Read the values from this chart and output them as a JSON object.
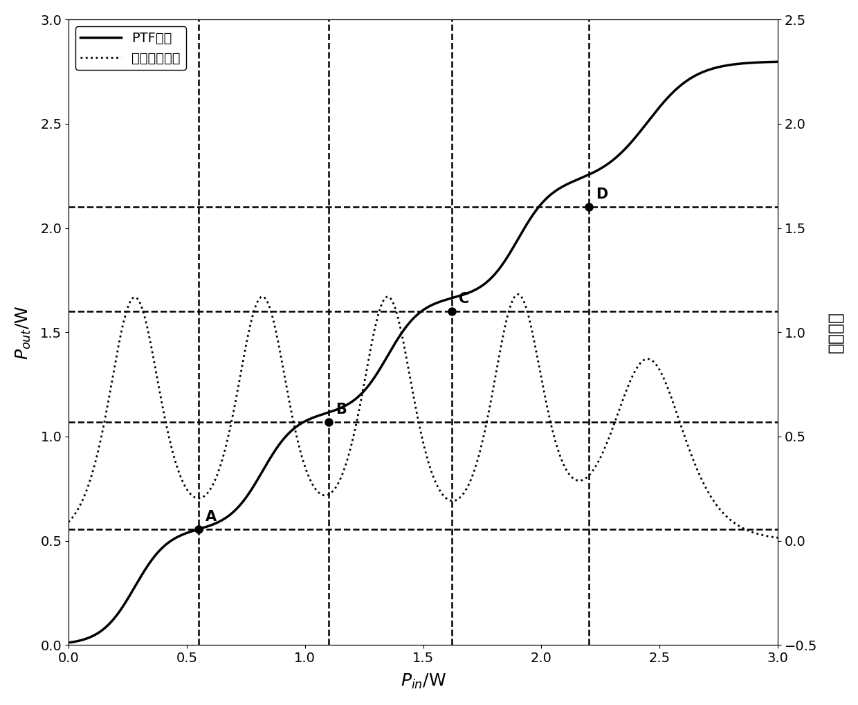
{
  "xlabel": "$P_{in}$/W",
  "ylabel_left": "$P_{out}$/W",
  "ylabel_right": "微分增益",
  "legend_ptf": "PTF曲线",
  "legend_diff": "微分增益曲线",
  "xlim": [
    0,
    3
  ],
  "ylim_left": [
    0,
    3
  ],
  "ylim_right": [
    -0.5,
    2.5
  ],
  "points": {
    "A": [
      0.55,
      0.555
    ],
    "B": [
      1.1,
      1.07
    ],
    "C": [
      1.62,
      1.6
    ],
    "D": [
      2.2,
      2.1
    ]
  },
  "hlines": [
    0.555,
    1.07,
    1.6,
    2.1
  ],
  "vlines": [
    0.55,
    1.1,
    1.62,
    2.2
  ],
  "background_color": "#ffffff",
  "line_color": "#000000"
}
